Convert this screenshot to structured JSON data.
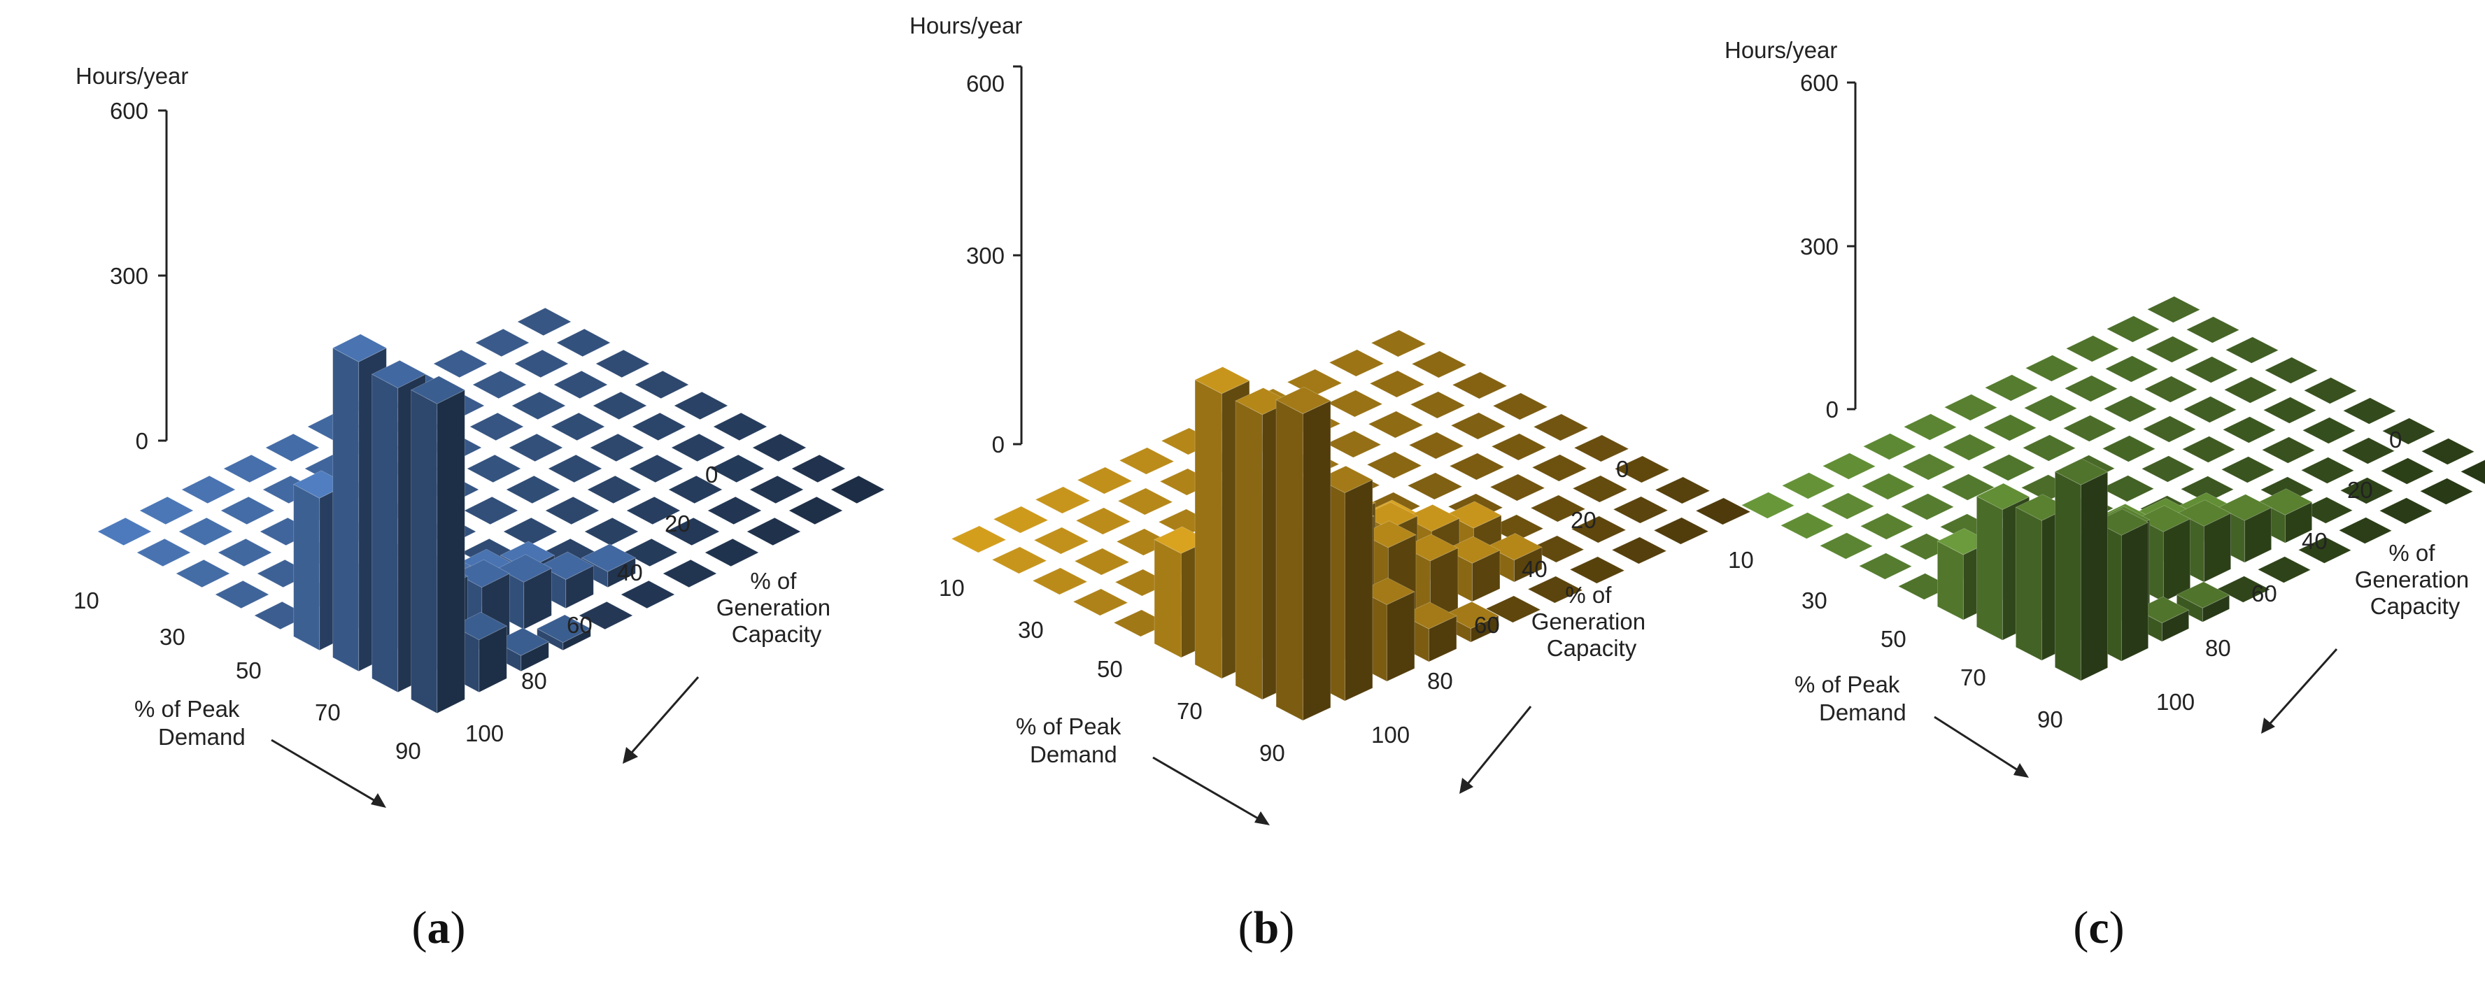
{
  "chart_data": [
    {
      "type": "bar3d",
      "panel": "a",
      "caption_letter": "a",
      "ylabel": "Hours/year",
      "z_ticks": [
        "0",
        "300",
        "600"
      ],
      "zlim": [
        0,
        600
      ],
      "x_axis_title": [
        "% of Peak",
        "Demand"
      ],
      "y_axis_title": [
        "% of",
        "Generation",
        "Capacity"
      ],
      "x_tick_labels": [
        "10",
        "30",
        "50",
        "70",
        "90"
      ],
      "y_tick_labels": [
        "0",
        "20",
        "40",
        "60",
        "80",
        "100"
      ],
      "x_categories": [
        "10",
        "20",
        "30",
        "40",
        "50",
        "60",
        "70",
        "80",
        "90"
      ],
      "y_categories": [
        "0",
        "10",
        "20",
        "30",
        "40",
        "50",
        "60",
        "70",
        "80",
        "90",
        "100"
      ],
      "color": "#4f7dc0",
      "values": [
        [
          0,
          0,
          0,
          0,
          0,
          0,
          0,
          0,
          0,
          0,
          0
        ],
        [
          0,
          0,
          0,
          0,
          0,
          0,
          0,
          0,
          0,
          0,
          0
        ],
        [
          0,
          0,
          0,
          0,
          0,
          0,
          0,
          0,
          0,
          0,
          0
        ],
        [
          0,
          0,
          0,
          0,
          0,
          0,
          0,
          0,
          0,
          0,
          0
        ],
        [
          0,
          0,
          0,
          0,
          0,
          0,
          0,
          0,
          0,
          0,
          0
        ],
        [
          290,
          60,
          35,
          15,
          0,
          0,
          0,
          0,
          0,
          0,
          0
        ],
        [
          590,
          130,
          95,
          60,
          35,
          0,
          0,
          0,
          0,
          0,
          0
        ],
        [
          580,
          155,
          120,
          90,
          55,
          30,
          0,
          0,
          0,
          0,
          0
        ],
        [
          590,
          100,
          30,
          15,
          0,
          0,
          0,
          0,
          0,
          0,
          0
        ]
      ]
    },
    {
      "type": "bar3d",
      "panel": "b",
      "caption_letter": "b",
      "ylabel": "Hours/year",
      "z_ticks": [
        "0",
        "300",
        "600"
      ],
      "zlim": [
        0,
        600
      ],
      "x_axis_title": [
        "% of Peak",
        "Demand"
      ],
      "y_axis_title": [
        "% of",
        "Generation",
        "Capacity"
      ],
      "x_tick_labels": [
        "10",
        "30",
        "50",
        "70",
        "90"
      ],
      "y_tick_labels": [
        "0",
        "20",
        "40",
        "60",
        "80",
        "100"
      ],
      "x_categories": [
        "10",
        "20",
        "30",
        "40",
        "50",
        "60",
        "70",
        "80",
        "90"
      ],
      "y_categories": [
        "0",
        "10",
        "20",
        "30",
        "40",
        "50",
        "60",
        "70",
        "80",
        "90",
        "100"
      ],
      "color": "#d9a21e",
      "values": [
        [
          0,
          0,
          0,
          0,
          0,
          0,
          0,
          0,
          0,
          0,
          0
        ],
        [
          0,
          0,
          0,
          0,
          0,
          0,
          0,
          0,
          0,
          0,
          0
        ],
        [
          0,
          0,
          0,
          0,
          0,
          0,
          0,
          0,
          0,
          0,
          0
        ],
        [
          0,
          0,
          0,
          0,
          0,
          0,
          0,
          0,
          0,
          0,
          0
        ],
        [
          0,
          0,
          0,
          0,
          0,
          0,
          0,
          0,
          0,
          0,
          0
        ],
        [
          190,
          240,
          210,
          160,
          100,
          60,
          0,
          0,
          0,
          0,
          0
        ],
        [
          520,
          300,
          250,
          190,
          130,
          90,
          60,
          0,
          0,
          0,
          0
        ],
        [
          520,
          290,
          240,
          170,
          110,
          70,
          40,
          0,
          0,
          0,
          0
        ],
        [
          560,
          380,
          140,
          60,
          25,
          0,
          0,
          0,
          0,
          0,
          0
        ]
      ]
    },
    {
      "type": "bar3d",
      "panel": "c",
      "caption_letter": "c",
      "ylabel": "Hours/year",
      "z_ticks": [
        "0",
        "300",
        "600"
      ],
      "zlim": [
        0,
        600
      ],
      "x_axis_title": [
        "% of Peak",
        "Demand"
      ],
      "y_axis_title": [
        "% of",
        "Generation",
        "Capacity"
      ],
      "x_tick_labels": [
        "10",
        "30",
        "50",
        "70",
        "90"
      ],
      "y_tick_labels": [
        "0",
        "20",
        "40",
        "60",
        "80",
        "100"
      ],
      "x_categories": [
        "10",
        "20",
        "30",
        "40",
        "50",
        "60",
        "70",
        "80",
        "90"
      ],
      "y_categories": [
        "0",
        "10",
        "20",
        "30",
        "40",
        "50",
        "60",
        "70",
        "80",
        "90",
        "100"
      ],
      "color": "#6a9a3a",
      "values": [
        [
          0,
          0,
          0,
          0,
          0,
          0,
          0,
          0,
          0,
          0,
          0
        ],
        [
          0,
          0,
          0,
          0,
          0,
          0,
          0,
          0,
          0,
          0,
          0
        ],
        [
          0,
          0,
          0,
          0,
          0,
          0,
          0,
          0,
          0,
          0,
          0
        ],
        [
          0,
          0,
          0,
          0,
          0,
          0,
          0,
          0,
          0,
          0,
          0
        ],
        [
          0,
          0,
          0,
          0,
          0,
          0,
          0,
          0,
          0,
          0,
          0
        ],
        [
          140,
          100,
          70,
          40,
          20,
          0,
          0,
          0,
          0,
          0,
          0
        ],
        [
          280,
          200,
          150,
          110,
          80,
          50,
          0,
          0,
          0,
          0,
          0
        ],
        [
          300,
          230,
          190,
          150,
          120,
          90,
          60,
          0,
          0,
          0,
          0
        ],
        [
          420,
          270,
          40,
          30,
          0,
          0,
          0,
          0,
          0,
          0,
          0
        ]
      ]
    }
  ]
}
